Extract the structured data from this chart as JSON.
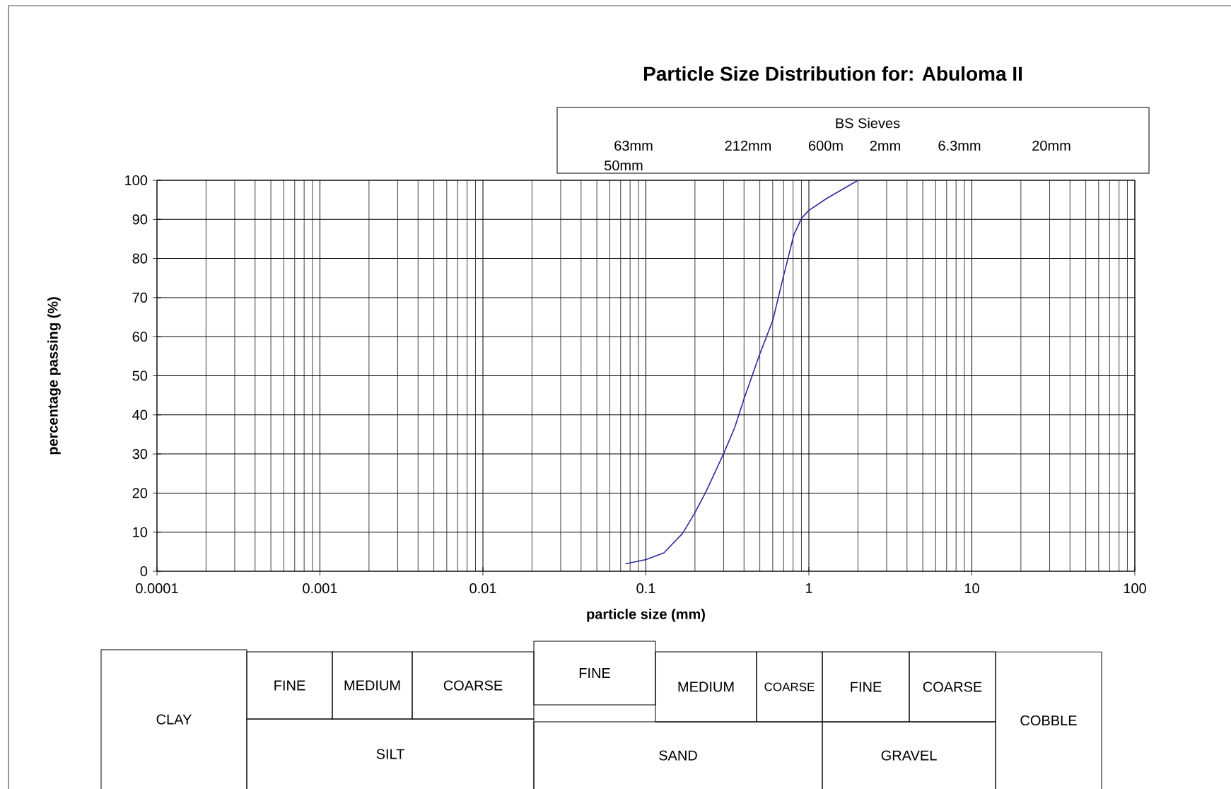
{
  "chart_data": {
    "type": "line",
    "title": "Particle Size Distribution for:  Abuloma II",
    "xlabel": "particle size (mm)",
    "ylabel": "percentage passing (%)",
    "log": "x",
    "grid": true,
    "xlim": [
      0.0001,
      100
    ],
    "xticks": [
      0.0001,
      0.001,
      0.01,
      0.1,
      1,
      10,
      100
    ],
    "ylim": [
      0,
      100
    ],
    "yticks": [
      0,
      10,
      20,
      30,
      40,
      50,
      60,
      70,
      80,
      90,
      100
    ],
    "series": [
      {
        "color": "#2b2b9a",
        "x": [
          0.075,
          0.1,
          0.129,
          0.168,
          0.2,
          0.234,
          0.3,
          0.351,
          0.4,
          0.499,
          0.601,
          0.697,
          0.808,
          0.902,
          1.0,
          1.28,
          2.0
        ],
        "values": [
          1.9,
          3.0,
          4.7,
          9.7,
          15,
          20.4,
          30.1,
          36.8,
          44.1,
          55.5,
          64.2,
          75.3,
          86,
          90.3,
          92.3,
          95.3,
          100
        ]
      }
    ],
    "annotations": [
      "BS Sieves",
      "63mm",
      "212mm",
      "600m",
      "2mm",
      "6.3mm",
      "20mm",
      "50mm",
      "CLAY",
      "FINE",
      "MEDIUM",
      "COARSE",
      "SILT",
      "FINE",
      "MEDIUM",
      "COARSE",
      "FINE",
      "COARSE",
      "SAND",
      "GRAVEL",
      "COBBLE"
    ]
  }
}
